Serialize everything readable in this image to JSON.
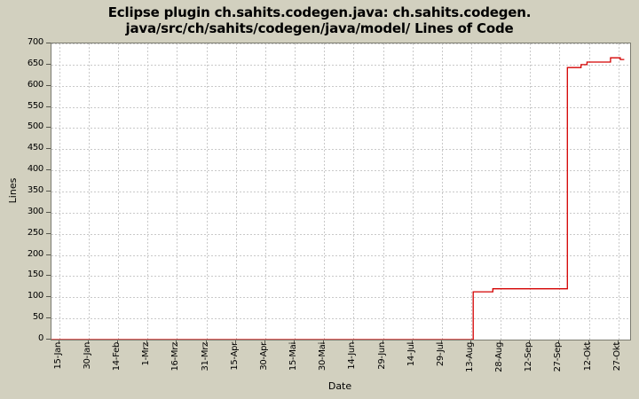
{
  "title": {
    "line1": "Eclipse plugin ch.sahits.codegen.java: ch.sahits.codegen.",
    "line2": "java/src/ch/sahits/codegen/java/model/ Lines of Code"
  },
  "axes": {
    "y_label": "Lines",
    "x_label": "Date"
  },
  "colors": {
    "background": "#d2d0bf",
    "plot_background": "#ffffff",
    "plot_border": "#7b7b70",
    "gridline": "#c9c9c9",
    "series_red": "#d40000",
    "tick_mark": "#55554c",
    "text": "#000000"
  },
  "chart_data": {
    "type": "line",
    "title": "Eclipse plugin ch.sahits.codegen.java: ch.sahits.codegen.java/src/ch/sahits/codegen/java/model/ Lines of Code",
    "xlabel": "Date",
    "ylabel": "Lines",
    "grid": true,
    "legend": "none",
    "ylim": [
      0,
      700
    ],
    "y_tick_step": 50,
    "y_tick_labels": [
      "0",
      "50",
      "100",
      "150",
      "200",
      "250",
      "300",
      "350",
      "400",
      "450",
      "500",
      "550",
      "600",
      "650",
      "700"
    ],
    "x_domain_days": [
      11,
      306
    ],
    "x_tick_days": [
      15,
      30,
      45,
      60,
      75,
      90,
      105,
      120,
      135,
      150,
      165,
      180,
      195,
      210,
      225,
      240,
      255,
      270,
      285,
      300
    ],
    "x_tick_labels": [
      "15-Jan",
      "30-Jan",
      "14-Feb",
      "1-Mrz",
      "16-Mrz",
      "31-Mrz",
      "15-Apr",
      "30-Apr",
      "15-Mai",
      "30-Mai",
      "14-Jun",
      "29-Jun",
      "14-Jul",
      "29-Jul",
      "13-Aug",
      "28-Aug",
      "12-Sep",
      "27-Sep",
      "12-Okt",
      "27-Okt"
    ],
    "series": [
      {
        "name": "Lines of Code",
        "color": "#d40000",
        "interpolation": "step",
        "points_day_value": [
          [
            11,
            0
          ],
          [
            226,
            0
          ],
          [
            226,
            113
          ],
          [
            236,
            113
          ],
          [
            236,
            120
          ],
          [
            274,
            120
          ],
          [
            274,
            643
          ],
          [
            281,
            643
          ],
          [
            281,
            650
          ],
          [
            284,
            650
          ],
          [
            284,
            656
          ],
          [
            296,
            656
          ],
          [
            296,
            666
          ],
          [
            301,
            666
          ],
          [
            301,
            662
          ],
          [
            303,
            662
          ]
        ]
      }
    ],
    "annotations": "Lines of code flat at 0 from mid-Jan until ~14-Aug, jumps to ~113 then ~120, flat until ~1-Okt, jumps to ~643, steps up to ~650, ~656, ~666, small step down to ~662 by 27-Okt"
  }
}
